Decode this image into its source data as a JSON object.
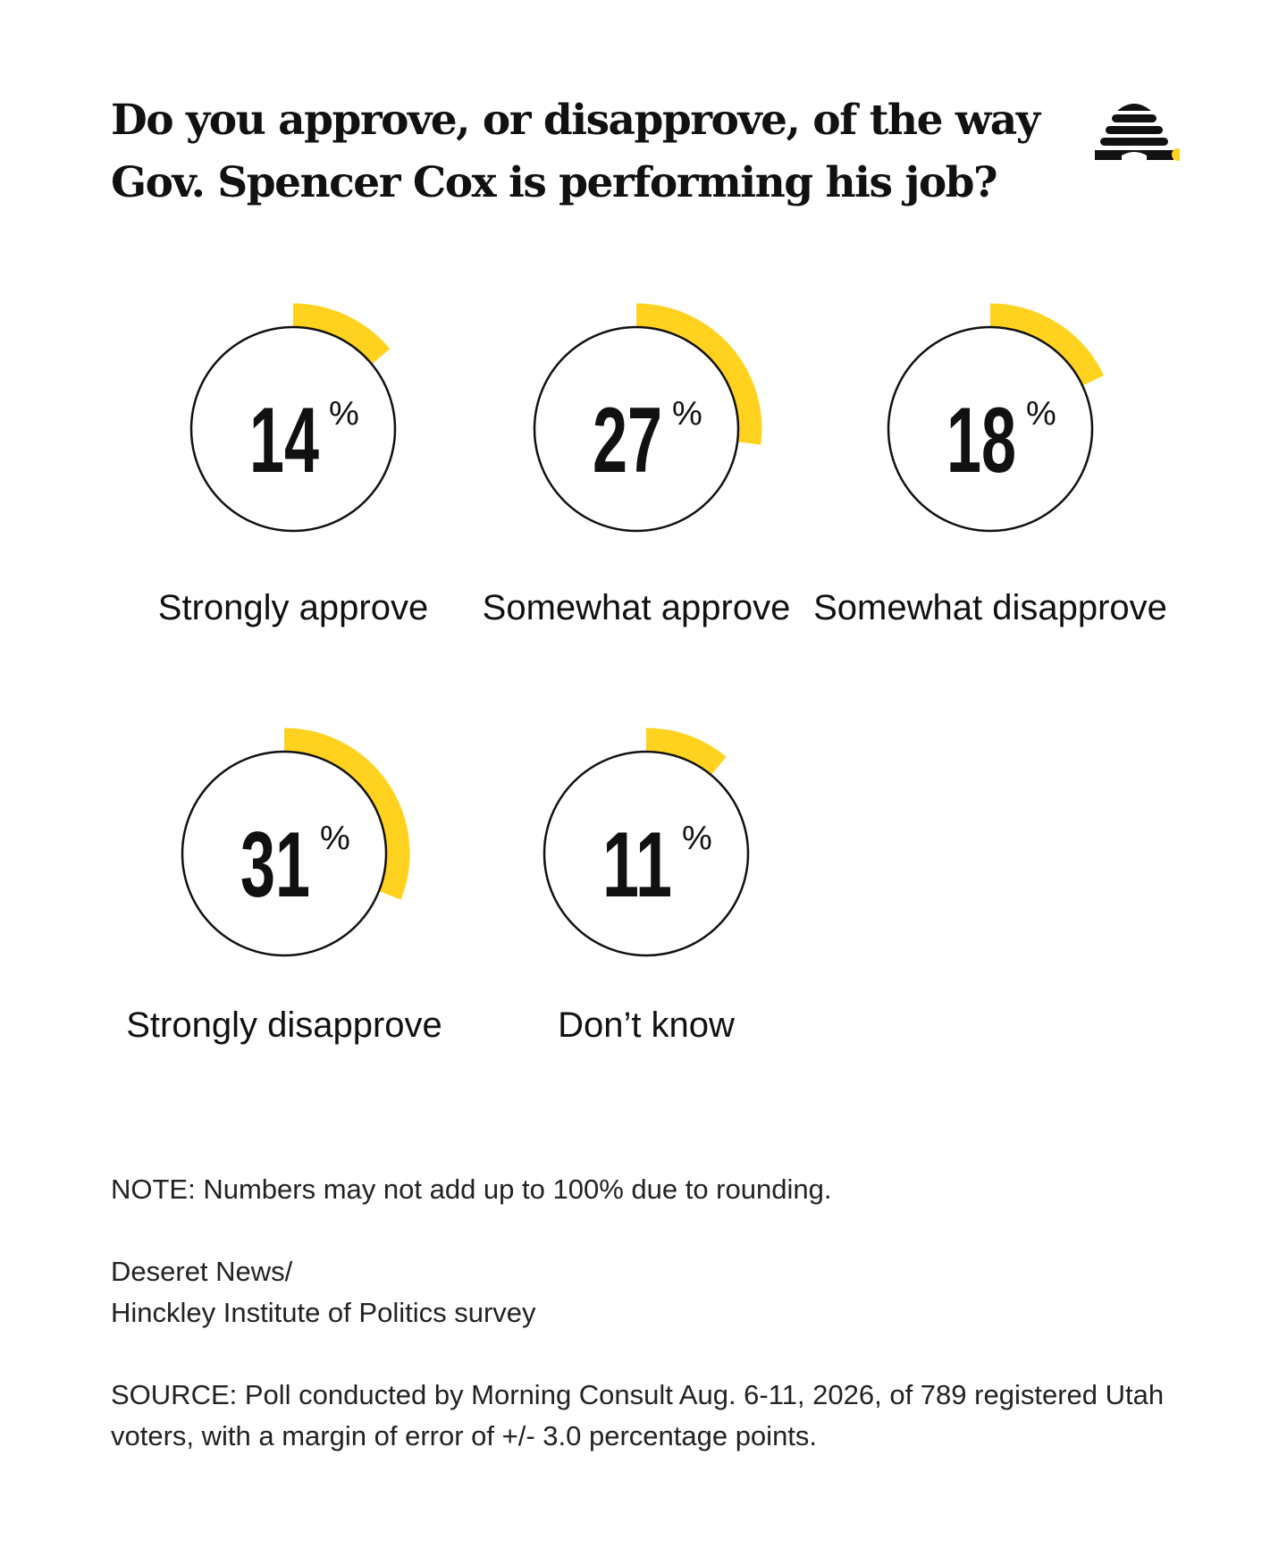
{
  "header": {
    "title": "Do you approve, or disapprove, of the way Gov. Spencer Cox is performing his job?",
    "logo_icon": "beehive-icon"
  },
  "colors": {
    "accent": "#FFD21F",
    "ring": "#111111",
    "text": "#111111"
  },
  "chart_data": {
    "type": "pie",
    "title": "Do you approve, or disapprove, of the way Gov. Spencer Cox is performing his job?",
    "unit": "%",
    "categories": [
      "Strongly approve",
      "Somewhat approve",
      "Somewhat disapprove",
      "Strongly disapprove",
      "Don’t know"
    ],
    "values": [
      14,
      27,
      18,
      31,
      11
    ]
  },
  "footer": {
    "note": "NOTE: Numbers may not add up to 100% due to rounding.",
    "credit_line1": "Deseret News/",
    "credit_line2": "Hinckley Institute of Politics survey",
    "source": "SOURCE: Poll conducted by Morning Consult Aug. 6-11, 2026, of 789 registered Utah voters, with a margin of error of +/- 3.0 percentage points."
  }
}
